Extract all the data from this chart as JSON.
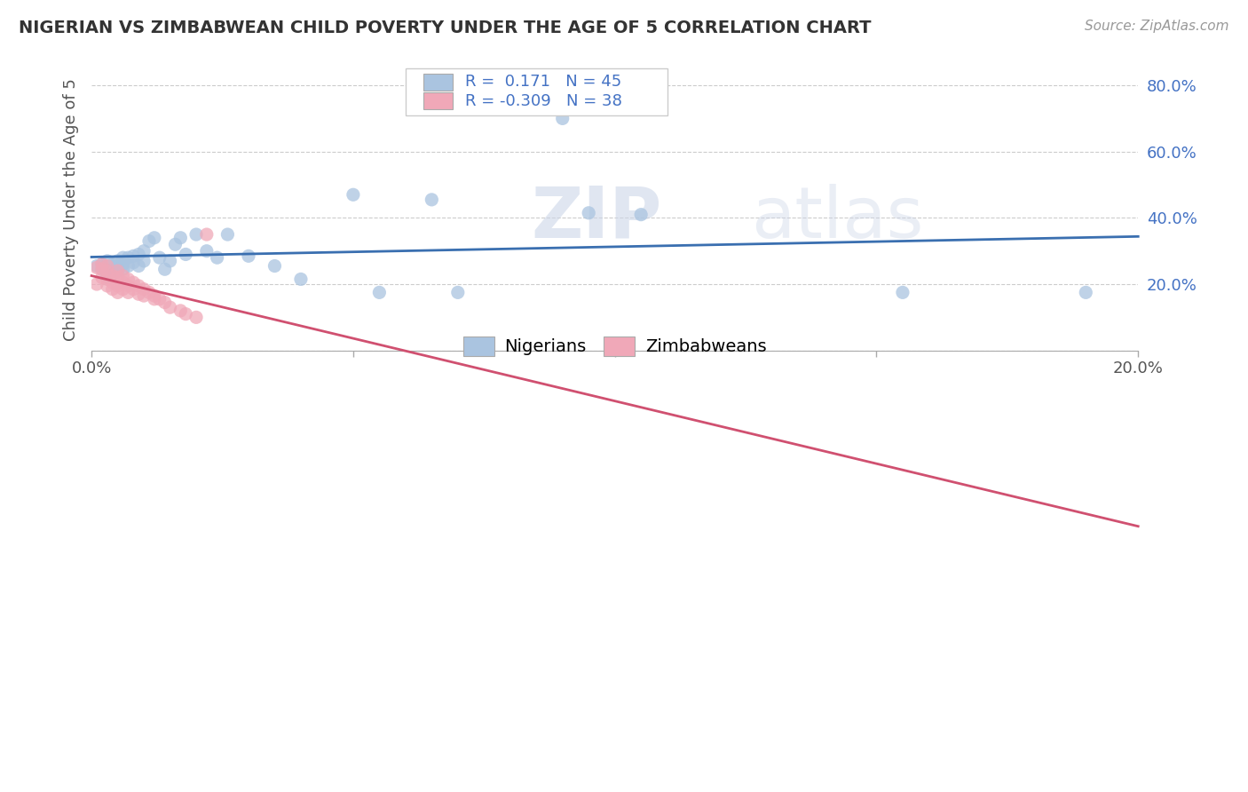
{
  "title": "NIGERIAN VS ZIMBABWEAN CHILD POVERTY UNDER THE AGE OF 5 CORRELATION CHART",
  "source": "Source: ZipAtlas.com",
  "ylabel": "Child Poverty Under the Age of 5",
  "xlim": [
    0.0,
    0.2
  ],
  "ylim": [
    0.0,
    0.85
  ],
  "x_ticks": [
    0.0,
    0.05,
    0.1,
    0.15,
    0.2
  ],
  "y_ticks": [
    0.0,
    0.2,
    0.4,
    0.6,
    0.8
  ],
  "nigerian_R": 0.171,
  "nigerian_N": 45,
  "zimbabwean_R": -0.309,
  "zimbabwean_N": 38,
  "nigerian_color": "#aac4e0",
  "nigerian_line_color": "#3a6fb0",
  "zimbabwean_color": "#f0a8b8",
  "zimbabwean_line_color": "#d05070",
  "watermark_zip": "ZIP",
  "watermark_atlas": "atlas",
  "legend_labels": [
    "Nigerians",
    "Zimbabweans"
  ],
  "nigerian_x": [
    0.001,
    0.002,
    0.002,
    0.003,
    0.003,
    0.004,
    0.004,
    0.005,
    0.005,
    0.005,
    0.006,
    0.006,
    0.006,
    0.007,
    0.007,
    0.008,
    0.008,
    0.009,
    0.009,
    0.01,
    0.01,
    0.011,
    0.012,
    0.013,
    0.014,
    0.015,
    0.016,
    0.017,
    0.018,
    0.02,
    0.022,
    0.024,
    0.026,
    0.03,
    0.035,
    0.04,
    0.05,
    0.055,
    0.065,
    0.07,
    0.09,
    0.095,
    0.105,
    0.155,
    0.19
  ],
  "nigerian_y": [
    0.255,
    0.245,
    0.26,
    0.22,
    0.27,
    0.23,
    0.26,
    0.24,
    0.27,
    0.255,
    0.245,
    0.26,
    0.28,
    0.255,
    0.28,
    0.265,
    0.285,
    0.255,
    0.29,
    0.3,
    0.27,
    0.33,
    0.34,
    0.28,
    0.245,
    0.27,
    0.32,
    0.34,
    0.29,
    0.35,
    0.3,
    0.28,
    0.35,
    0.285,
    0.255,
    0.215,
    0.47,
    0.175,
    0.455,
    0.175,
    0.7,
    0.415,
    0.41,
    0.175,
    0.175
  ],
  "zimbabwean_x": [
    0.001,
    0.001,
    0.002,
    0.002,
    0.002,
    0.003,
    0.003,
    0.003,
    0.003,
    0.004,
    0.004,
    0.004,
    0.005,
    0.005,
    0.005,
    0.005,
    0.006,
    0.006,
    0.006,
    0.007,
    0.007,
    0.007,
    0.008,
    0.008,
    0.009,
    0.009,
    0.01,
    0.01,
    0.011,
    0.012,
    0.012,
    0.013,
    0.014,
    0.015,
    0.017,
    0.018,
    0.02,
    0.022
  ],
  "zimbabwean_y": [
    0.25,
    0.2,
    0.26,
    0.245,
    0.22,
    0.255,
    0.24,
    0.215,
    0.195,
    0.225,
    0.205,
    0.185,
    0.24,
    0.22,
    0.195,
    0.175,
    0.225,
    0.205,
    0.185,
    0.215,
    0.195,
    0.175,
    0.205,
    0.185,
    0.195,
    0.17,
    0.185,
    0.165,
    0.175,
    0.165,
    0.155,
    0.155,
    0.145,
    0.13,
    0.12,
    0.11,
    0.1,
    0.35
  ]
}
